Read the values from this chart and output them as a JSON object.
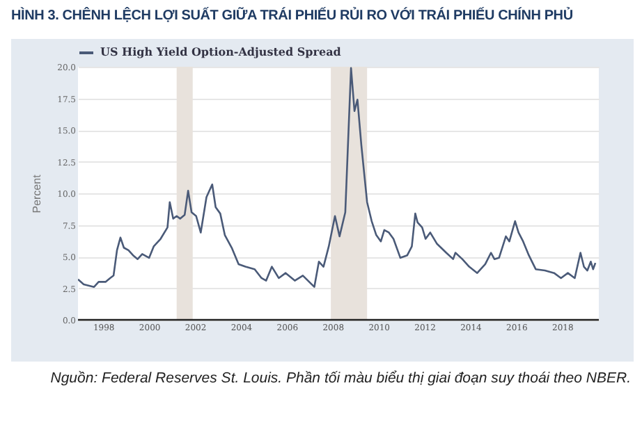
{
  "chart_data": {
    "type": "line",
    "title": "HÌNH 3. CHÊNH LỆCH LỢI SUẤT GIỮA TRÁI PHIẾU RỦI RO VỚI TRÁI PHIẾU CHÍNH PHỦ",
    "ylabel": "Percent",
    "annotations": [
      "Nguồn: Federal Reserves St. Louis. Phần tối màu biểu thị giai đoạn suy thoái theo NBER."
    ],
    "x": [
      1996.9,
      1997.15,
      1997.6,
      1997.8,
      1998.1,
      1998.3,
      1998.45,
      1998.6,
      1998.75,
      1998.9,
      1999.1,
      1999.3,
      1999.5,
      1999.7,
      2000.0,
      2000.2,
      2000.5,
      2000.8,
      2000.9,
      2001.05,
      2001.2,
      2001.35,
      2001.55,
      2001.7,
      2001.85,
      2002.05,
      2002.25,
      2002.5,
      2002.75,
      2002.9,
      2003.1,
      2003.3,
      2003.6,
      2003.9,
      2004.2,
      2004.6,
      2004.9,
      2005.1,
      2005.35,
      2005.65,
      2005.95,
      2006.35,
      2006.7,
      2007.2,
      2007.4,
      2007.6,
      2007.83,
      2008.1,
      2008.3,
      2008.55,
      2008.8,
      2008.95,
      2009.08,
      2009.25,
      2009.5,
      2009.7,
      2009.9,
      2010.1,
      2010.25,
      2010.45,
      2010.65,
      2010.95,
      2011.25,
      2011.45,
      2011.6,
      2011.7,
      2011.9,
      2012.05,
      2012.25,
      2012.55,
      2012.95,
      2013.25,
      2013.35,
      2013.65,
      2013.95,
      2014.3,
      2014.45,
      2014.65,
      2014.9,
      2015.05,
      2015.25,
      2015.55,
      2015.7,
      2015.95,
      2016.1,
      2016.3,
      2016.55,
      2016.85,
      2017.25,
      2017.65,
      2017.95,
      2018.25,
      2018.55,
      2018.8,
      2018.95,
      2019.1,
      2019.25,
      2019.35,
      2019.45
    ],
    "series": [
      {
        "name": "US High Yield Option-Adjusted Spread",
        "color": "#4a5a78",
        "values": [
          3.2,
          2.8,
          2.6,
          3.0,
          3.0,
          3.3,
          3.5,
          5.5,
          6.5,
          5.7,
          5.5,
          5.1,
          4.8,
          5.2,
          4.9,
          5.8,
          6.4,
          7.3,
          9.3,
          8.0,
          8.2,
          8.0,
          8.3,
          10.2,
          8.5,
          8.2,
          6.9,
          9.7,
          10.7,
          8.9,
          8.4,
          6.7,
          5.7,
          4.4,
          4.2,
          4.0,
          3.3,
          3.1,
          4.2,
          3.3,
          3.7,
          3.1,
          3.5,
          2.6,
          4.6,
          4.2,
          5.8,
          8.2,
          6.6,
          8.5,
          19.9,
          16.5,
          17.4,
          13.8,
          9.3,
          7.8,
          6.7,
          6.2,
          7.1,
          6.9,
          6.4,
          4.9,
          5.1,
          5.8,
          8.4,
          7.7,
          7.3,
          6.4,
          6.9,
          6.0,
          5.3,
          4.8,
          5.3,
          4.8,
          4.2,
          3.7,
          4.0,
          4.4,
          5.3,
          4.8,
          4.9,
          6.6,
          6.2,
          7.8,
          6.9,
          6.2,
          5.1,
          4.0,
          3.9,
          3.7,
          3.3,
          3.7,
          3.3,
          5.3,
          4.2,
          3.9,
          4.6,
          4.0,
          4.5
        ]
      }
    ],
    "xlim": [
      1996.9,
      2019.6
    ],
    "xticks": [
      1998,
      2000,
      2002,
      2004,
      2006,
      2008,
      2010,
      2012,
      2014,
      2016,
      2018
    ],
    "ylim": [
      0,
      20
    ],
    "yticks": [
      {
        "value": 0,
        "label": "0.0"
      },
      2.5,
      {
        "value": 5,
        "label": "5.0"
      },
      7.5,
      {
        "value": 10,
        "label": "10.0"
      },
      12.5,
      {
        "value": 15,
        "label": "15.0"
      },
      17.5,
      {
        "value": 20,
        "label": "20.0"
      }
    ],
    "bands": [
      {
        "axis": "x",
        "from": 2001.2,
        "to": 2001.9,
        "color": "#e8e2dc"
      },
      {
        "axis": "x",
        "from": 2007.92,
        "to": 2009.5,
        "color": "#e8e2dc"
      }
    ],
    "grid": "y",
    "legend": "top left"
  }
}
